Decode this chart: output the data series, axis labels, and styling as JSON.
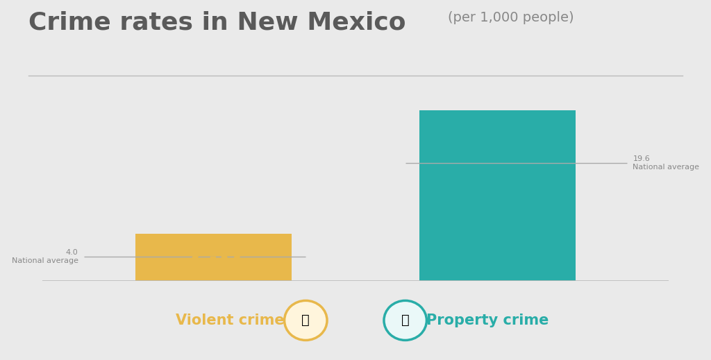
{
  "title_main": "Crime rates in New Mexico",
  "title_sub": "(per 1,000 people)",
  "categories": [
    "Violent crime",
    "Property crime"
  ],
  "values": [
    7.8,
    28.4
  ],
  "bar_colors": [
    "#E8B84B",
    "#29ADA8"
  ],
  "national_averages": [
    4.0,
    19.6
  ],
  "value_colors": [
    "#E8B84B",
    "#29ADA8"
  ],
  "background_color": "#EAEAEA",
  "legend_labels": [
    "Violent crime",
    "Property crime"
  ],
  "legend_colors": [
    "#E8B84B",
    "#29ADA8"
  ],
  "ylim_max": 33,
  "title_color": "#5a5a5a",
  "subtitle_color": "#888888",
  "avg_line_color": "#AAAAAA",
  "avg_text_color": "#888888",
  "separator_color": "#BBBBBB",
  "title_fontsize": 26,
  "subtitle_fontsize": 14,
  "value_fontsize": 34,
  "legend_fontsize": 15,
  "avg_fontsize": 8
}
